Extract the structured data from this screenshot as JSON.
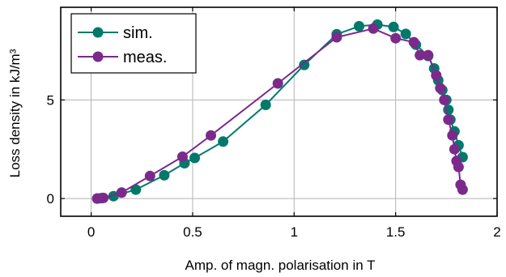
{
  "chart_data": {
    "type": "line",
    "title": "",
    "xlabel": "Amp. of magn. polarisation in T",
    "ylabel": "Loss density in kJ/m³",
    "xlim": [
      -0.15,
      2.0
    ],
    "ylim": [
      -0.9,
      9.7
    ],
    "x_ticks": [
      0,
      0.5,
      1,
      1.5,
      2
    ],
    "x_tick_labels": [
      "0",
      "0.5",
      "1",
      "1.5",
      "2"
    ],
    "y_ticks": [
      0,
      5
    ],
    "y_tick_labels": [
      "0",
      "5"
    ],
    "grid": true,
    "legend_position": "top-left",
    "series": [
      {
        "name": "sim.",
        "color": "#00796b",
        "marker": "circle",
        "points": [
          [
            0.03,
            0.0
          ],
          [
            0.05,
            0.02
          ],
          [
            0.11,
            0.12
          ],
          [
            0.22,
            0.45
          ],
          [
            0.36,
            1.18
          ],
          [
            0.46,
            1.79
          ],
          [
            0.51,
            2.06
          ],
          [
            0.65,
            2.89
          ],
          [
            0.86,
            4.75
          ],
          [
            1.05,
            6.78
          ],
          [
            1.21,
            8.33
          ],
          [
            1.32,
            8.74
          ],
          [
            1.41,
            8.82
          ],
          [
            1.49,
            8.7
          ],
          [
            1.55,
            8.35
          ],
          [
            1.6,
            7.8
          ],
          [
            1.66,
            7.23
          ],
          [
            1.69,
            6.6
          ],
          [
            1.71,
            6.0
          ],
          [
            1.73,
            5.5
          ],
          [
            1.75,
            5.0
          ],
          [
            1.76,
            4.5
          ],
          [
            1.77,
            4.0
          ],
          [
            1.79,
            3.4
          ],
          [
            1.81,
            2.7
          ],
          [
            1.83,
            2.1
          ]
        ]
      },
      {
        "name": "meas.",
        "color": "#7b2a8c",
        "marker": "circle",
        "points": [
          [
            0.03,
            0.0
          ],
          [
            0.06,
            0.03
          ],
          [
            0.15,
            0.3
          ],
          [
            0.29,
            1.14
          ],
          [
            0.45,
            2.12
          ],
          [
            0.59,
            3.2
          ],
          [
            0.92,
            5.84
          ],
          [
            1.21,
            8.18
          ],
          [
            1.39,
            8.62
          ],
          [
            1.5,
            8.13
          ],
          [
            1.59,
            7.93
          ],
          [
            1.62,
            7.27
          ],
          [
            1.66,
            7.27
          ],
          [
            1.7,
            6.25
          ],
          [
            1.72,
            5.6
          ],
          [
            1.74,
            5.0
          ],
          [
            1.76,
            4.0
          ],
          [
            1.78,
            3.2
          ],
          [
            1.79,
            2.5
          ],
          [
            1.8,
            1.9
          ],
          [
            1.81,
            1.6
          ],
          [
            1.82,
            0.7
          ],
          [
            1.83,
            0.45
          ]
        ]
      }
    ]
  }
}
